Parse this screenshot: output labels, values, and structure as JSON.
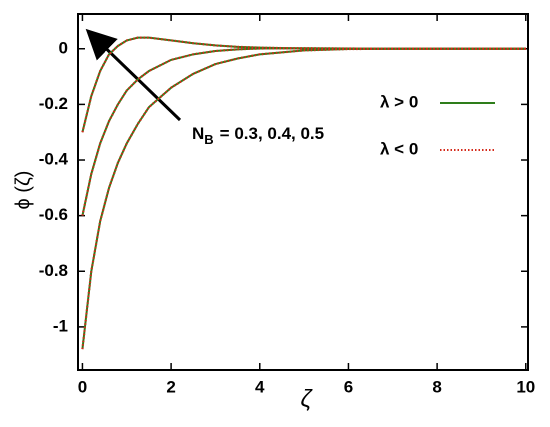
{
  "chart_data": {
    "type": "line",
    "xlabel": "ζ",
    "ylabel": "ϕ (ζ)",
    "xlim": [
      -0.1,
      10.05
    ],
    "ylim": [
      -1.155,
      0.125
    ],
    "xticks": [
      0,
      2,
      4,
      6,
      8,
      10
    ],
    "yticks": [
      0,
      -0.2,
      -0.4,
      -0.6,
      -0.8,
      -1
    ],
    "legend": "upper right",
    "annotation": {
      "text": "N",
      "subscript": "B",
      "rest": "= 0.3, 0.4, 0.5"
    },
    "x": [
      0,
      0.2,
      0.4,
      0.6,
      0.8,
      1,
      1.25,
      1.5,
      2,
      2.5,
      3,
      3.5,
      4,
      5,
      6,
      7,
      8,
      10
    ],
    "series": [
      {
        "name": "λ > 0",
        "color": "#2e7d1a",
        "style": "solid",
        "values": [
          -0.3,
          -0.17,
          -0.08,
          -0.02,
          0.01,
          0.03,
          0.04,
          0.04,
          0.03,
          0.02,
          0.012,
          0.007,
          0.004,
          0.001,
          0,
          0,
          0,
          0
        ]
      },
      {
        "name": "λ > 0",
        "color": "#2e7d1a",
        "style": "solid",
        "values": [
          -0.6,
          -0.45,
          -0.34,
          -0.26,
          -0.2,
          -0.15,
          -0.11,
          -0.08,
          -0.04,
          -0.02,
          -0.008,
          -0.002,
          0.001,
          0.002,
          0.001,
          0,
          0,
          0
        ]
      },
      {
        "name": "λ > 0",
        "color": "#2e7d1a",
        "style": "solid",
        "values": [
          -1.08,
          -0.8,
          -0.62,
          -0.5,
          -0.41,
          -0.34,
          -0.27,
          -0.21,
          -0.14,
          -0.09,
          -0.055,
          -0.035,
          -0.02,
          -0.006,
          -0.001,
          0,
          0,
          0
        ]
      },
      {
        "name": "λ < 0",
        "color": "#d42a1a",
        "style": "dotted",
        "values": [
          -0.3,
          -0.17,
          -0.08,
          -0.02,
          0.01,
          0.03,
          0.04,
          0.04,
          0.03,
          0.02,
          0.012,
          0.007,
          0.004,
          0.001,
          0,
          0,
          0,
          0
        ]
      },
      {
        "name": "λ < 0",
        "color": "#d42a1a",
        "style": "dotted",
        "values": [
          -0.6,
          -0.45,
          -0.34,
          -0.26,
          -0.2,
          -0.15,
          -0.11,
          -0.08,
          -0.04,
          -0.02,
          -0.008,
          -0.002,
          0.001,
          0.002,
          0.001,
          0,
          0,
          0
        ]
      },
      {
        "name": "λ < 0",
        "color": "#d42a1a",
        "style": "dotted",
        "values": [
          -1.08,
          -0.8,
          -0.62,
          -0.5,
          -0.41,
          -0.34,
          -0.27,
          -0.21,
          -0.14,
          -0.09,
          -0.055,
          -0.035,
          -0.02,
          -0.006,
          -0.001,
          0,
          0,
          0
        ]
      }
    ]
  }
}
